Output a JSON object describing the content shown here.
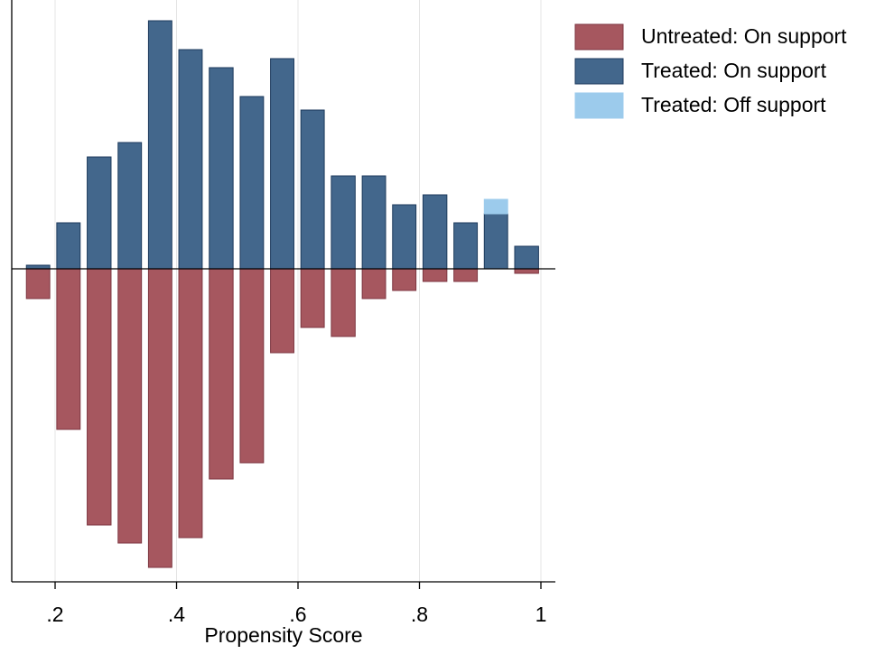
{
  "chart_data": {
    "type": "mirror-histogram",
    "x_label": "Propensity Score",
    "bins": [
      0.147,
      0.197,
      0.247,
      0.298,
      0.348,
      0.398,
      0.448,
      0.499,
      0.549,
      0.599,
      0.649,
      0.7,
      0.75,
      0.8,
      0.851,
      0.901,
      0.951,
      1.002
    ],
    "series": [
      {
        "name": "Untreated: On support",
        "color": "#a6575f",
        "edge": "#7d3640",
        "values": [
          -33,
          -178,
          -284,
          -304,
          -331,
          -298,
          -233,
          -215,
          -93,
          -65,
          -75,
          -33,
          -24,
          -14,
          -14,
          0,
          -5
        ]
      },
      {
        "name": "Treated: On support",
        "color": "#43678c",
        "edge": "#1d3a5c",
        "values": [
          4,
          51,
          124,
          140,
          275,
          243,
          223,
          191,
          233,
          176,
          103,
          103,
          71,
          82,
          51,
          61,
          25
        ]
      },
      {
        "name": "Treated: Off support",
        "color": "#9ccbec",
        "edge": "#9ccbec",
        "stack_on": 1,
        "values": [
          0,
          0,
          0,
          0,
          0,
          0,
          0,
          0,
          0,
          0,
          0,
          0,
          0,
          0,
          0,
          16,
          0
        ]
      }
    ],
    "xlim": [
      0.1286,
      1.0238
    ],
    "ylim": [
      -347,
      298
    ],
    "xticks": [
      {
        "value": 0.2,
        "label": ".2"
      },
      {
        "value": 0.4,
        "label": ".4"
      },
      {
        "value": 0.6,
        "label": ".6"
      },
      {
        "value": 0.8,
        "label": ".8"
      },
      1
    ],
    "grid": true
  }
}
